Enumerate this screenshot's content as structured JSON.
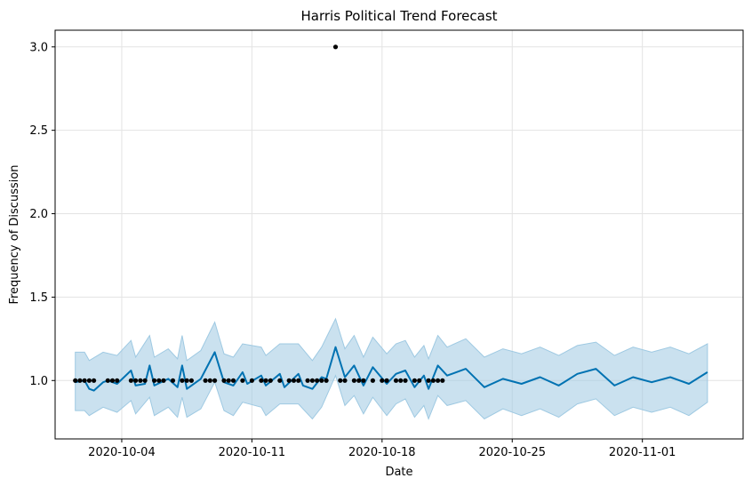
{
  "chart_data": {
    "type": "line",
    "title": "Harris Political Trend Forecast",
    "xlabel": "Date",
    "ylabel": "Frequency of Discussion",
    "x_axis_type": "date",
    "xlim": [
      "2020-09-30T10:00",
      "2020-11-06T10:00"
    ],
    "ylim": [
      0.65,
      3.1
    ],
    "x_ticks": [
      "2020-10-04",
      "2020-10-11",
      "2020-10-18",
      "2020-10-25",
      "2020-11-01"
    ],
    "y_ticks": [
      "1.0",
      "1.5",
      "2.0",
      "2.5",
      "3.0"
    ],
    "grid": true,
    "colors": {
      "forecast_line": "#0072B2",
      "uncertainty_band": "#9ec9e2",
      "observed_points": "#000000",
      "grid": "#e3e3e3"
    },
    "series": [
      {
        "role": "observed",
        "marker": "point",
        "points": [
          [
            "2020-10-01T12:00",
            1.0
          ],
          [
            "2020-10-01T18:00",
            1.0
          ],
          [
            "2020-10-02T00:00",
            1.0
          ],
          [
            "2020-10-02T06:00",
            1.0
          ],
          [
            "2020-10-02T12:00",
            1.0
          ],
          [
            "2020-10-03T06:00",
            1.0
          ],
          [
            "2020-10-03T12:00",
            1.0
          ],
          [
            "2020-10-03T18:00",
            1.0
          ],
          [
            "2020-10-04T12:00",
            1.0
          ],
          [
            "2020-10-04T18:00",
            1.0
          ],
          [
            "2020-10-05T00:00",
            1.0
          ],
          [
            "2020-10-05T06:00",
            1.0
          ],
          [
            "2020-10-05T18:00",
            1.0
          ],
          [
            "2020-10-06T00:00",
            1.0
          ],
          [
            "2020-10-06T06:00",
            1.0
          ],
          [
            "2020-10-06T18:00",
            1.0
          ],
          [
            "2020-10-07T06:00",
            1.0
          ],
          [
            "2020-10-07T12:00",
            1.0
          ],
          [
            "2020-10-07T18:00",
            1.0
          ],
          [
            "2020-10-08T12:00",
            1.0
          ],
          [
            "2020-10-08T18:00",
            1.0
          ],
          [
            "2020-10-09T00:00",
            1.0
          ],
          [
            "2020-10-09T12:00",
            1.0
          ],
          [
            "2020-10-09T18:00",
            1.0
          ],
          [
            "2020-10-10T00:00",
            1.0
          ],
          [
            "2020-10-10T12:00",
            1.0
          ],
          [
            "2020-10-11T00:00",
            1.0
          ],
          [
            "2020-10-11T12:00",
            1.0
          ],
          [
            "2020-10-11T18:00",
            1.0
          ],
          [
            "2020-10-12T00:00",
            1.0
          ],
          [
            "2020-10-12T12:00",
            1.0
          ],
          [
            "2020-10-13T00:00",
            1.0
          ],
          [
            "2020-10-13T06:00",
            1.0
          ],
          [
            "2020-10-13T12:00",
            1.0
          ],
          [
            "2020-10-14T00:00",
            1.0
          ],
          [
            "2020-10-14T06:00",
            1.0
          ],
          [
            "2020-10-14T12:00",
            1.0
          ],
          [
            "2020-10-14T18:00",
            1.0
          ],
          [
            "2020-10-15T00:00",
            1.0
          ],
          [
            "2020-10-15T12:00",
            3.0
          ],
          [
            "2020-10-15T18:00",
            1.0
          ],
          [
            "2020-10-16T00:00",
            1.0
          ],
          [
            "2020-10-16T12:00",
            1.0
          ],
          [
            "2020-10-16T18:00",
            1.0
          ],
          [
            "2020-10-17T00:00",
            1.0
          ],
          [
            "2020-10-17T12:00",
            1.0
          ],
          [
            "2020-10-18T00:00",
            1.0
          ],
          [
            "2020-10-18T06:00",
            1.0
          ],
          [
            "2020-10-18T18:00",
            1.0
          ],
          [
            "2020-10-19T00:00",
            1.0
          ],
          [
            "2020-10-19T06:00",
            1.0
          ],
          [
            "2020-10-19T18:00",
            1.0
          ],
          [
            "2020-10-20T00:00",
            1.0
          ],
          [
            "2020-10-20T12:00",
            1.0
          ],
          [
            "2020-10-20T18:00",
            1.0
          ],
          [
            "2020-10-21T00:00",
            1.0
          ],
          [
            "2020-10-21T06:00",
            1.0
          ]
        ]
      },
      {
        "role": "forecast",
        "marker": "line",
        "points": [
          [
            "2020-10-01T12:00",
            0.99
          ],
          [
            "2020-10-02T00:00",
            1.0
          ],
          [
            "2020-10-02T06:00",
            0.95
          ],
          [
            "2020-10-02T12:00",
            0.94
          ],
          [
            "2020-10-03T00:00",
            0.99
          ],
          [
            "2020-10-03T06:00",
            1.0
          ],
          [
            "2020-10-03T18:00",
            0.98
          ],
          [
            "2020-10-04T12:00",
            1.06
          ],
          [
            "2020-10-04T18:00",
            0.97
          ],
          [
            "2020-10-05T06:00",
            0.98
          ],
          [
            "2020-10-05T12:00",
            1.09
          ],
          [
            "2020-10-05T18:00",
            0.97
          ],
          [
            "2020-10-06T12:00",
            1.01
          ],
          [
            "2020-10-07T00:00",
            0.96
          ],
          [
            "2020-10-07T06:00",
            1.09
          ],
          [
            "2020-10-07T12:00",
            0.95
          ],
          [
            "2020-10-08T06:00",
            1.01
          ],
          [
            "2020-10-09T00:00",
            1.17
          ],
          [
            "2020-10-09T12:00",
            0.99
          ],
          [
            "2020-10-10T00:00",
            0.97
          ],
          [
            "2020-10-10T12:00",
            1.05
          ],
          [
            "2020-10-10T18:00",
            0.98
          ],
          [
            "2020-10-11T12:00",
            1.03
          ],
          [
            "2020-10-11T18:00",
            0.97
          ],
          [
            "2020-10-12T12:00",
            1.04
          ],
          [
            "2020-10-12T18:00",
            0.96
          ],
          [
            "2020-10-13T12:00",
            1.04
          ],
          [
            "2020-10-13T18:00",
            0.97
          ],
          [
            "2020-10-14T06:00",
            0.95
          ],
          [
            "2020-10-14T18:00",
            1.02
          ],
          [
            "2020-10-15T00:00",
            1.01
          ],
          [
            "2020-10-15T12:00",
            1.2
          ],
          [
            "2020-10-16T00:00",
            1.02
          ],
          [
            "2020-10-16T12:00",
            1.09
          ],
          [
            "2020-10-17T00:00",
            0.97
          ],
          [
            "2020-10-17T12:00",
            1.08
          ],
          [
            "2020-10-18T06:00",
            0.98
          ],
          [
            "2020-10-18T18:00",
            1.04
          ],
          [
            "2020-10-19T06:00",
            1.06
          ],
          [
            "2020-10-19T18:00",
            0.96
          ],
          [
            "2020-10-20T06:00",
            1.03
          ],
          [
            "2020-10-20T12:00",
            0.95
          ],
          [
            "2020-10-21T00:00",
            1.09
          ],
          [
            "2020-10-21T12:00",
            1.03
          ],
          [
            "2020-10-22T12:00",
            1.07
          ],
          [
            "2020-10-23T12:00",
            0.96
          ],
          [
            "2020-10-24T12:00",
            1.01
          ],
          [
            "2020-10-25T12:00",
            0.98
          ],
          [
            "2020-10-26T12:00",
            1.02
          ],
          [
            "2020-10-27T12:00",
            0.97
          ],
          [
            "2020-10-28T12:00",
            1.04
          ],
          [
            "2020-10-29T12:00",
            1.07
          ],
          [
            "2020-10-30T12:00",
            0.97
          ],
          [
            "2020-10-31T12:00",
            1.02
          ],
          [
            "2020-11-01T12:00",
            0.99
          ],
          [
            "2020-11-02T12:00",
            1.02
          ],
          [
            "2020-11-03T12:00",
            0.98
          ],
          [
            "2020-11-04T12:00",
            1.05
          ]
        ]
      },
      {
        "role": "uncertainty_interval",
        "marker": "band",
        "x": [
          "2020-10-01T12:00",
          "2020-10-02T00:00",
          "2020-10-02T06:00",
          "2020-10-03T00:00",
          "2020-10-03T18:00",
          "2020-10-04T12:00",
          "2020-10-04T18:00",
          "2020-10-05T12:00",
          "2020-10-05T18:00",
          "2020-10-06T12:00",
          "2020-10-07T00:00",
          "2020-10-07T06:00",
          "2020-10-07T12:00",
          "2020-10-08T06:00",
          "2020-10-09T00:00",
          "2020-10-09T12:00",
          "2020-10-10T00:00",
          "2020-10-10T12:00",
          "2020-10-11T12:00",
          "2020-10-11T18:00",
          "2020-10-12T12:00",
          "2020-10-13T12:00",
          "2020-10-14T06:00",
          "2020-10-14T18:00",
          "2020-10-15T12:00",
          "2020-10-16T00:00",
          "2020-10-16T12:00",
          "2020-10-17T00:00",
          "2020-10-17T12:00",
          "2020-10-18T06:00",
          "2020-10-18T18:00",
          "2020-10-19T06:00",
          "2020-10-19T18:00",
          "2020-10-20T06:00",
          "2020-10-20T12:00",
          "2020-10-21T00:00",
          "2020-10-21T12:00",
          "2020-10-22T12:00",
          "2020-10-23T12:00",
          "2020-10-24T12:00",
          "2020-10-25T12:00",
          "2020-10-26T12:00",
          "2020-10-27T12:00",
          "2020-10-28T12:00",
          "2020-10-29T12:00",
          "2020-10-30T12:00",
          "2020-10-31T12:00",
          "2020-11-01T12:00",
          "2020-11-02T12:00",
          "2020-11-03T12:00",
          "2020-11-04T12:00"
        ],
        "lower": [
          0.82,
          0.82,
          0.79,
          0.84,
          0.81,
          0.88,
          0.8,
          0.9,
          0.79,
          0.84,
          0.78,
          0.9,
          0.78,
          0.83,
          0.99,
          0.82,
          0.79,
          0.87,
          0.84,
          0.79,
          0.86,
          0.86,
          0.77,
          0.84,
          1.03,
          0.85,
          0.91,
          0.8,
          0.9,
          0.79,
          0.86,
          0.89,
          0.78,
          0.85,
          0.77,
          0.91,
          0.85,
          0.88,
          0.77,
          0.83,
          0.79,
          0.83,
          0.78,
          0.86,
          0.89,
          0.79,
          0.84,
          0.81,
          0.84,
          0.79,
          0.87
        ],
        "upper": [
          1.17,
          1.17,
          1.12,
          1.17,
          1.15,
          1.24,
          1.14,
          1.27,
          1.14,
          1.19,
          1.13,
          1.27,
          1.12,
          1.18,
          1.35,
          1.16,
          1.14,
          1.22,
          1.2,
          1.15,
          1.22,
          1.22,
          1.12,
          1.2,
          1.37,
          1.19,
          1.27,
          1.14,
          1.26,
          1.16,
          1.22,
          1.24,
          1.14,
          1.21,
          1.13,
          1.27,
          1.2,
          1.25,
          1.14,
          1.19,
          1.16,
          1.2,
          1.15,
          1.21,
          1.23,
          1.15,
          1.2,
          1.17,
          1.2,
          1.16,
          1.22
        ]
      }
    ]
  }
}
